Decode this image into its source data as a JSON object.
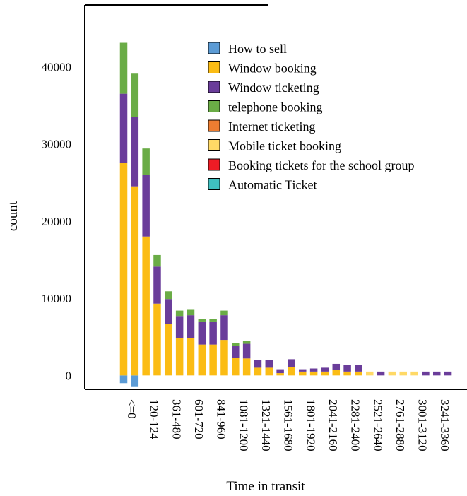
{
  "chart_data": {
    "type": "bar",
    "stacked": true,
    "xlabel": "Time in transit",
    "ylabel": "count",
    "y_ticks": [
      {
        "value": 0,
        "label": "0"
      },
      {
        "value": 10000,
        "label": "10000"
      },
      {
        "value": 20000,
        "label": "20000"
      },
      {
        "value": 30000,
        "label": "30000"
      },
      {
        "value": 40000,
        "label": "40000"
      }
    ],
    "ylim": [
      -1800,
      48000
    ],
    "legend_position": "top-right",
    "categories": [
      "<=0",
      "",
      "120-124",
      "",
      "361-480",
      "",
      "601-720",
      "",
      "841-960",
      "",
      "1081-1200",
      "",
      "1321-1440",
      "",
      "1561-1680",
      "",
      "1801-1920",
      "",
      "2041-2160",
      "",
      "2281-2400",
      "",
      "2521-2640",
      "",
      "2761-2880",
      "",
      "3001-3120",
      "",
      "3241-3360",
      ""
    ],
    "series": [
      {
        "name": "How to sell",
        "color": "#5b9bd5",
        "values": [
          -1000,
          -1500,
          0,
          0,
          0,
          0,
          0,
          0,
          0,
          0,
          0,
          0,
          0,
          0,
          0,
          0,
          0,
          0,
          0,
          0,
          0,
          0,
          0,
          0,
          0,
          0,
          0,
          0,
          0,
          0
        ]
      },
      {
        "name": "Window booking",
        "color": "#fbbc14",
        "values": [
          27500,
          24500,
          18000,
          9300,
          6700,
          4800,
          4800,
          4000,
          4000,
          4600,
          2300,
          2200,
          1000,
          1000,
          300,
          1100,
          500,
          500,
          500,
          700,
          500,
          500,
          0,
          0,
          0,
          0,
          0,
          0,
          0,
          0
        ]
      },
      {
        "name": "Window ticketing",
        "color": "#6a3d9a",
        "values": [
          9000,
          9000,
          8000,
          4800,
          3200,
          2900,
          3000,
          2900,
          2900,
          3200,
          1500,
          1900,
          1000,
          1000,
          500,
          1000,
          300,
          400,
          500,
          800,
          900,
          900,
          0,
          500,
          0,
          0,
          0,
          500,
          500,
          500
        ]
      },
      {
        "name": "telephone booking",
        "color": "#6aac46",
        "values": [
          6600,
          5600,
          3400,
          1500,
          1000,
          700,
          700,
          400,
          400,
          600,
          400,
          400,
          0,
          0,
          0,
          0,
          0,
          0,
          0,
          0,
          0,
          0,
          0,
          0,
          0,
          0,
          0,
          0,
          0,
          0
        ]
      },
      {
        "name": "Internet ticketing",
        "color": "#ed7d31",
        "values": [
          0,
          0,
          0,
          0,
          0,
          0,
          0,
          0,
          0,
          0,
          0,
          0,
          0,
          0,
          0,
          0,
          0,
          0,
          0,
          0,
          0,
          0,
          0,
          0,
          0,
          0,
          0,
          0,
          0,
          0
        ]
      },
      {
        "name": "Mobile ticket booking",
        "color": "#ffd966",
        "values": [
          0,
          0,
          0,
          0,
          0,
          0,
          0,
          0,
          0,
          0,
          0,
          0,
          0,
          0,
          0,
          0,
          0,
          0,
          0,
          0,
          0,
          0,
          500,
          0,
          500,
          500,
          500,
          0,
          0,
          0
        ]
      },
      {
        "name": "Booking tickets for the school group",
        "color": "#ee1c25",
        "values": [
          0,
          0,
          0,
          0,
          0,
          0,
          0,
          0,
          0,
          0,
          0,
          0,
          0,
          0,
          0,
          0,
          0,
          0,
          0,
          0,
          0,
          0,
          0,
          0,
          0,
          0,
          0,
          0,
          0,
          0
        ]
      },
      {
        "name": "Automatic Ticket",
        "color": "#3fbfbf",
        "values": [
          0,
          0,
          0,
          0,
          0,
          0,
          0,
          0,
          0,
          0,
          0,
          0,
          0,
          0,
          0,
          0,
          0,
          0,
          0,
          0,
          0,
          0,
          0,
          0,
          0,
          0,
          0,
          0,
          0,
          0
        ]
      }
    ]
  }
}
